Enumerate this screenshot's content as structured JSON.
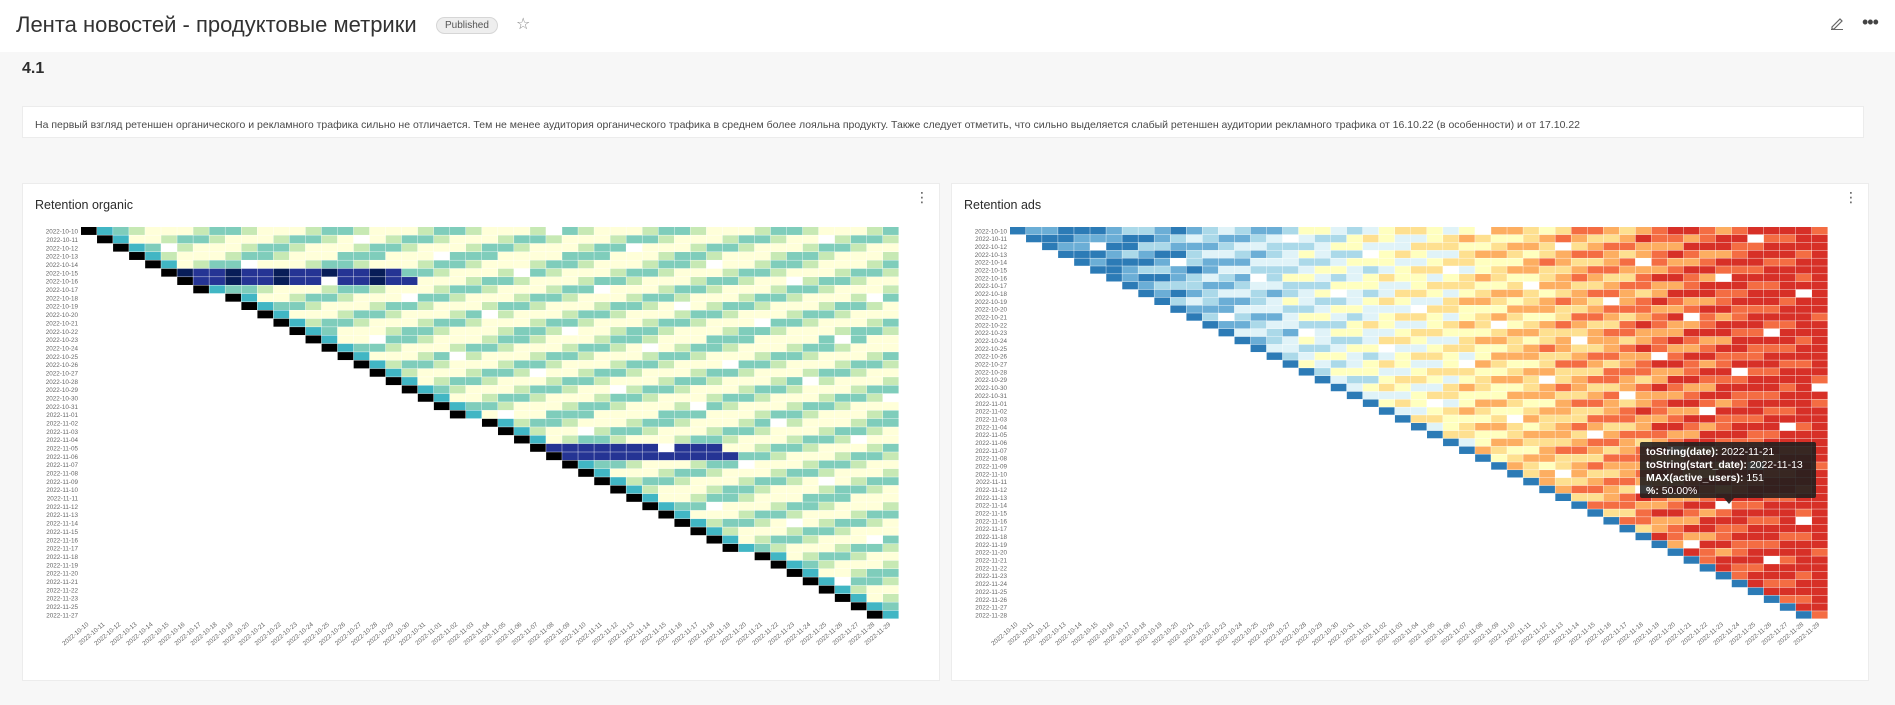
{
  "header": {
    "title": "Лента новостей - продуктовые метрики",
    "status_badge": "Published"
  },
  "section": {
    "label": "4.1",
    "note": "На первый взгляд ретеншен органического и рекламного трафика сильно не отличается. Тем не менее аудитория органического трафика в среднем более лояльна продукту. Также следует отметить, что сильно выделяется слабый ретеншен аудитории рекламного трафика от 16.10.22 (в особенности) и от 17.10.22"
  },
  "charts": {
    "organic_title": "Retention organic",
    "ads_title": "Retention ads"
  },
  "tooltip": {
    "line1_key": "toString(date):",
    "line1_val": "2022-11-21",
    "line2_key": "toString(start_date):",
    "line2_val": "2022-11-13",
    "line3_key": "MAX(active_users):",
    "line3_val": "151",
    "line4_key": "%:",
    "line4_val": "50.00%"
  },
  "icons": {
    "star": "star-icon",
    "edit": "edit-icon",
    "more": "more-icon"
  },
  "chart_data": [
    {
      "type": "heatmap",
      "title": "Retention organic",
      "y_categories": [
        "2022-10-10",
        "2022-10-11",
        "2022-10-12",
        "2022-10-13",
        "2022-10-14",
        "2022-10-15",
        "2022-10-16",
        "2022-10-17",
        "2022-10-18",
        "2022-10-19",
        "2022-10-20",
        "2022-10-21",
        "2022-10-22",
        "2022-10-23",
        "2022-10-24",
        "2022-10-25",
        "2022-10-26",
        "2022-10-27",
        "2022-10-28",
        "2022-10-29",
        "2022-10-30",
        "2022-10-31",
        "2022-11-01",
        "2022-11-02",
        "2022-11-03",
        "2022-11-04",
        "2022-11-05",
        "2022-11-06",
        "2022-11-07",
        "2022-11-08",
        "2022-11-09",
        "2022-11-10",
        "2022-11-11",
        "2022-11-12",
        "2022-11-13",
        "2022-11-14",
        "2022-11-15",
        "2022-11-16",
        "2022-11-17",
        "2022-11-18",
        "2022-11-19",
        "2022-11-20",
        "2022-11-21",
        "2022-11-22",
        "2022-11-23",
        "2022-11-25",
        "2022-11-27"
      ],
      "x_categories": [
        "2022-10-10",
        "2022-10-11",
        "2022-10-12",
        "2022-10-13",
        "2022-10-14",
        "2022-10-15",
        "2022-10-16",
        "2022-10-17",
        "2022-10-18",
        "2022-10-19",
        "2022-10-20",
        "2022-10-21",
        "2022-10-22",
        "2022-10-23",
        "2022-10-24",
        "2022-10-25",
        "2022-10-26",
        "2022-10-27",
        "2022-10-28",
        "2022-10-29",
        "2022-10-30",
        "2022-10-31",
        "2022-11-01",
        "2022-11-02",
        "2022-11-03",
        "2022-11-04",
        "2022-11-05",
        "2022-11-06",
        "2022-11-07",
        "2022-11-08",
        "2022-11-09",
        "2022-11-10",
        "2022-11-11",
        "2022-11-12",
        "2022-11-13",
        "2022-11-14",
        "2022-11-15",
        "2022-11-16",
        "2022-11-17",
        "2022-11-18",
        "2022-11-19",
        "2022-11-20",
        "2022-11-21",
        "2022-11-22",
        "2022-11-23",
        "2022-11-24",
        "2022-11-25",
        "2022-11-26",
        "2022-11-27",
        "2022-11-28",
        "2022-11-29"
      ],
      "colors": [
        "#ffffd9",
        "#c7e9b4",
        "#7fcdbb",
        "#41b6c4",
        "#1d91c0",
        "#253494",
        "#081d58",
        "#000000"
      ]
    },
    {
      "type": "heatmap",
      "title": "Retention ads",
      "y_categories": [
        "2022-10-10",
        "2022-10-11",
        "2022-10-12",
        "2022-10-13",
        "2022-10-14",
        "2022-10-15",
        "2022-10-16",
        "2022-10-17",
        "2022-10-18",
        "2022-10-19",
        "2022-10-20",
        "2022-10-21",
        "2022-10-22",
        "2022-10-23",
        "2022-10-24",
        "2022-10-25",
        "2022-10-26",
        "2022-10-27",
        "2022-10-28",
        "2022-10-29",
        "2022-10-30",
        "2022-10-31",
        "2022-11-01",
        "2022-11-02",
        "2022-11-03",
        "2022-11-04",
        "2022-11-05",
        "2022-11-06",
        "2022-11-07",
        "2022-11-08",
        "2022-11-09",
        "2022-11-10",
        "2022-11-11",
        "2022-11-12",
        "2022-11-13",
        "2022-11-14",
        "2022-11-15",
        "2022-11-16",
        "2022-11-17",
        "2022-11-18",
        "2022-11-19",
        "2022-11-20",
        "2022-11-21",
        "2022-11-22",
        "2022-11-23",
        "2022-11-24",
        "2022-11-25",
        "2022-11-26",
        "2022-11-27",
        "2022-11-28"
      ],
      "x_categories": [
        "2022-10-10",
        "2022-10-11",
        "2022-10-12",
        "2022-10-13",
        "2022-10-14",
        "2022-10-15",
        "2022-10-16",
        "2022-10-17",
        "2022-10-18",
        "2022-10-19",
        "2022-10-20",
        "2022-10-21",
        "2022-10-22",
        "2022-10-23",
        "2022-10-24",
        "2022-10-25",
        "2022-10-26",
        "2022-10-27",
        "2022-10-28",
        "2022-10-29",
        "2022-10-30",
        "2022-10-31",
        "2022-11-01",
        "2022-11-02",
        "2022-11-03",
        "2022-11-04",
        "2022-11-05",
        "2022-11-06",
        "2022-11-07",
        "2022-11-08",
        "2022-11-09",
        "2022-11-10",
        "2022-11-11",
        "2022-11-12",
        "2022-11-13",
        "2022-11-14",
        "2022-11-15",
        "2022-11-16",
        "2022-11-17",
        "2022-11-18",
        "2022-11-19",
        "2022-11-20",
        "2022-11-21",
        "2022-11-22",
        "2022-11-23",
        "2022-11-24",
        "2022-11-25",
        "2022-11-26",
        "2022-11-27",
        "2022-11-28",
        "2022-11-29"
      ],
      "colors": [
        "#2c7bb6",
        "#6baed6",
        "#abd9e9",
        "#e0f3f8",
        "#ffffbf",
        "#fee090",
        "#fdae61",
        "#f46d43",
        "#d73027"
      ]
    }
  ]
}
